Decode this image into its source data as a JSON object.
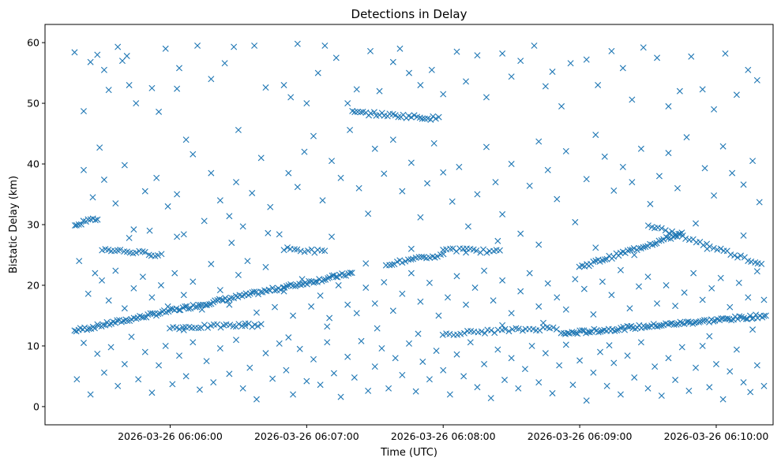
{
  "chart_data": {
    "type": "scatter",
    "title": "Detections in Delay",
    "xlabel": "Time (UTC)",
    "ylabel": "Bistatic Delay (km)",
    "x_unit": "seconds since 2026-03-26 06:05:00",
    "xlim": [
      5,
      325
    ],
    "ylim": [
      -3,
      63
    ],
    "x_ticks": [
      {
        "value": 60,
        "label": "2026-03-26 06:06:00"
      },
      {
        "value": 120,
        "label": "2026-03-26 06:07:00"
      },
      {
        "value": 180,
        "label": "2026-03-26 06:08:00"
      },
      {
        "value": 240,
        "label": "2026-03-26 06:09:00"
      },
      {
        "value": 300,
        "label": "2026-03-26 06:10:00"
      }
    ],
    "y_ticks": [
      {
        "value": 0,
        "label": "0"
      },
      {
        "value": 10,
        "label": "10"
      },
      {
        "value": 20,
        "label": "20"
      },
      {
        "value": 30,
        "label": "30"
      },
      {
        "value": 40,
        "label": "40"
      },
      {
        "value": 50,
        "label": "50"
      },
      {
        "value": 60,
        "label": "60"
      }
    ],
    "marker": "x",
    "color": "#1f77b4",
    "tracks": [
      {
        "name": "track-rising-1",
        "x0": 18,
        "y0": 12.5,
        "x1": 140,
        "y1": 22.0,
        "step": 0.9
      },
      {
        "name": "track-rising-2",
        "x0": 232,
        "y0": 12.0,
        "x1": 322,
        "y1": 15.0,
        "step": 0.9
      },
      {
        "name": "track-rising-3",
        "x0": 240,
        "y0": 23.0,
        "x1": 285,
        "y1": 28.5,
        "step": 1.0
      },
      {
        "name": "track-ridge-1",
        "x0": 140,
        "y0": 48.5,
        "x1": 178,
        "y1": 47.5,
        "step": 1.2
      },
      {
        "name": "track-ridge-2",
        "x0": 155,
        "y0": 23.5,
        "x1": 180,
        "y1": 25.0,
        "step": 1.2
      },
      {
        "name": "track-flat-1",
        "x0": 30,
        "y0": 26.0,
        "x1": 56,
        "y1": 25.0,
        "step": 1.4
      },
      {
        "name": "track-flat-2",
        "x0": 60,
        "y0": 13.0,
        "x1": 100,
        "y1": 13.5,
        "step": 1.4
      },
      {
        "name": "track-flat-3",
        "x0": 110,
        "y0": 26.0,
        "x1": 128,
        "y1": 25.5,
        "step": 1.5
      },
      {
        "name": "track-flat-4",
        "x0": 180,
        "y0": 26.0,
        "x1": 205,
        "y1": 25.5,
        "step": 1.5
      },
      {
        "name": "track-flat-5",
        "x0": 180,
        "y0": 12.0,
        "x1": 230,
        "y1": 13.0,
        "step": 1.5
      },
      {
        "name": "track-flat-6",
        "x0": 270,
        "y0": 30.0,
        "x1": 320,
        "y1": 23.5,
        "step": 1.5
      },
      {
        "name": "track-tail-1",
        "x0": 18,
        "y0": 30.0,
        "x1": 28,
        "y1": 31.0,
        "step": 1.0
      }
    ],
    "scatter_points": [
      [
        18,
        58.4
      ],
      [
        22,
        48.7
      ],
      [
        25,
        56.8
      ],
      [
        28,
        58.0
      ],
      [
        31,
        55.5
      ],
      [
        33,
        52.2
      ],
      [
        37,
        59.3
      ],
      [
        39,
        57.0
      ],
      [
        41,
        57.8
      ],
      [
        42,
        53.0
      ],
      [
        45,
        50.0
      ],
      [
        52,
        52.5
      ],
      [
        55,
        48.6
      ],
      [
        58,
        59.0
      ],
      [
        63,
        52.4
      ],
      [
        64,
        55.8
      ],
      [
        67,
        44.0
      ],
      [
        72,
        59.5
      ],
      [
        78,
        54.0
      ],
      [
        84,
        56.6
      ],
      [
        88,
        59.3
      ],
      [
        90,
        45.6
      ],
      [
        97,
        59.5
      ],
      [
        102,
        52.6
      ],
      [
        110,
        53.0
      ],
      [
        113,
        51.0
      ],
      [
        116,
        59.8
      ],
      [
        120,
        50.0
      ],
      [
        125,
        55.0
      ],
      [
        128,
        59.5
      ],
      [
        133,
        57.5
      ],
      [
        138,
        50.0
      ],
      [
        142,
        52.3
      ],
      [
        148,
        58.6
      ],
      [
        152,
        52.0
      ],
      [
        158,
        56.8
      ],
      [
        161,
        59.0
      ],
      [
        165,
        55.0
      ],
      [
        170,
        53.0
      ],
      [
        175,
        55.5
      ],
      [
        180,
        51.5
      ],
      [
        186,
        58.5
      ],
      [
        190,
        53.6
      ],
      [
        195,
        57.9
      ],
      [
        199,
        51.0
      ],
      [
        206,
        58.2
      ],
      [
        210,
        54.4
      ],
      [
        214,
        57.0
      ],
      [
        220,
        59.5
      ],
      [
        225,
        52.8
      ],
      [
        228,
        55.2
      ],
      [
        232,
        49.5
      ],
      [
        236,
        56.6
      ],
      [
        243,
        57.2
      ],
      [
        248,
        53.0
      ],
      [
        254,
        58.6
      ],
      [
        259,
        55.8
      ],
      [
        263,
        50.6
      ],
      [
        268,
        59.2
      ],
      [
        274,
        57.5
      ],
      [
        279,
        49.5
      ],
      [
        284,
        52.0
      ],
      [
        289,
        57.7
      ],
      [
        294,
        52.3
      ],
      [
        299,
        49.0
      ],
      [
        304,
        58.2
      ],
      [
        309,
        51.4
      ],
      [
        314,
        55.5
      ],
      [
        318,
        53.8
      ],
      [
        22,
        39.0
      ],
      [
        26,
        34.5
      ],
      [
        29,
        42.7
      ],
      [
        31,
        37.4
      ],
      [
        36,
        33.5
      ],
      [
        40,
        39.8
      ],
      [
        44,
        29.2
      ],
      [
        49,
        35.5
      ],
      [
        51,
        29.0
      ],
      [
        54,
        37.7
      ],
      [
        59,
        33.0
      ],
      [
        63,
        35.0
      ],
      [
        66,
        28.4
      ],
      [
        70,
        41.6
      ],
      [
        75,
        30.6
      ],
      [
        78,
        38.5
      ],
      [
        82,
        34.0
      ],
      [
        86,
        31.4
      ],
      [
        89,
        37.0
      ],
      [
        92,
        29.7
      ],
      [
        96,
        35.2
      ],
      [
        100,
        41.0
      ],
      [
        104,
        32.9
      ],
      [
        108,
        28.4
      ],
      [
        112,
        38.5
      ],
      [
        116,
        36.2
      ],
      [
        119,
        42.0
      ],
      [
        123,
        44.6
      ],
      [
        127,
        34.0
      ],
      [
        131,
        40.5
      ],
      [
        135,
        37.7
      ],
      [
        139,
        45.6
      ],
      [
        143,
        36.0
      ],
      [
        147,
        31.8
      ],
      [
        150,
        42.5
      ],
      [
        154,
        38.4
      ],
      [
        158,
        44.0
      ],
      [
        162,
        35.5
      ],
      [
        166,
        40.2
      ],
      [
        170,
        31.2
      ],
      [
        173,
        36.8
      ],
      [
        176,
        43.4
      ],
      [
        180,
        38.6
      ],
      [
        184,
        33.8
      ],
      [
        187,
        39.5
      ],
      [
        191,
        29.7
      ],
      [
        195,
        35.0
      ],
      [
        199,
        42.8
      ],
      [
        203,
        37.0
      ],
      [
        206,
        31.7
      ],
      [
        210,
        40.0
      ],
      [
        214,
        28.5
      ],
      [
        218,
        36.4
      ],
      [
        222,
        43.7
      ],
      [
        226,
        39.0
      ],
      [
        230,
        34.2
      ],
      [
        234,
        42.1
      ],
      [
        238,
        30.4
      ],
      [
        243,
        37.5
      ],
      [
        247,
        44.8
      ],
      [
        251,
        41.2
      ],
      [
        255,
        35.6
      ],
      [
        259,
        39.5
      ],
      [
        263,
        37.0
      ],
      [
        267,
        42.5
      ],
      [
        271,
        33.4
      ],
      [
        275,
        38.0
      ],
      [
        279,
        41.8
      ],
      [
        283,
        36.0
      ],
      [
        287,
        44.4
      ],
      [
        291,
        30.2
      ],
      [
        295,
        39.3
      ],
      [
        299,
        34.8
      ],
      [
        303,
        42.9
      ],
      [
        307,
        38.5
      ],
      [
        312,
        36.6
      ],
      [
        316,
        40.5
      ],
      [
        319,
        33.7
      ],
      [
        20,
        24.0
      ],
      [
        24,
        18.6
      ],
      [
        27,
        22.0
      ],
      [
        30,
        20.8
      ],
      [
        33,
        17.5
      ],
      [
        36,
        22.4
      ],
      [
        40,
        16.2
      ],
      [
        44,
        19.5
      ],
      [
        48,
        21.4
      ],
      [
        52,
        18.0
      ],
      [
        56,
        20.0
      ],
      [
        59,
        16.5
      ],
      [
        62,
        22.0
      ],
      [
        66,
        18.4
      ],
      [
        70,
        20.6
      ],
      [
        74,
        16.0
      ],
      [
        78,
        23.5
      ],
      [
        82,
        19.2
      ],
      [
        86,
        16.8
      ],
      [
        90,
        21.7
      ],
      [
        94,
        24.0
      ],
      [
        98,
        15.5
      ],
      [
        102,
        23.0
      ],
      [
        106,
        16.4
      ],
      [
        110,
        19.0
      ],
      [
        114,
        15.0
      ],
      [
        118,
        21.0
      ],
      [
        122,
        16.5
      ],
      [
        126,
        18.3
      ],
      [
        130,
        14.6
      ],
      [
        134,
        20.0
      ],
      [
        138,
        16.8
      ],
      [
        142,
        15.4
      ],
      [
        146,
        19.6
      ],
      [
        150,
        17.0
      ],
      [
        154,
        20.5
      ],
      [
        158,
        15.8
      ],
      [
        162,
        18.6
      ],
      [
        166,
        22.0
      ],
      [
        170,
        17.3
      ],
      [
        174,
        20.4
      ],
      [
        178,
        15.0
      ],
      [
        182,
        18.0
      ],
      [
        186,
        21.5
      ],
      [
        190,
        16.8
      ],
      [
        194,
        19.6
      ],
      [
        198,
        22.4
      ],
      [
        202,
        17.5
      ],
      [
        206,
        20.8
      ],
      [
        210,
        15.4
      ],
      [
        214,
        19.0
      ],
      [
        218,
        22.0
      ],
      [
        222,
        16.5
      ],
      [
        226,
        20.3
      ],
      [
        230,
        18.0
      ],
      [
        234,
        16.0
      ],
      [
        238,
        21.0
      ],
      [
        242,
        19.4
      ],
      [
        246,
        15.2
      ],
      [
        250,
        20.6
      ],
      [
        254,
        18.4
      ],
      [
        258,
        22.5
      ],
      [
        262,
        16.2
      ],
      [
        266,
        19.8
      ],
      [
        270,
        21.4
      ],
      [
        274,
        17.0
      ],
      [
        278,
        20.0
      ],
      [
        282,
        16.6
      ],
      [
        286,
        18.8
      ],
      [
        290,
        22.0
      ],
      [
        294,
        17.6
      ],
      [
        298,
        19.5
      ],
      [
        302,
        21.2
      ],
      [
        306,
        16.4
      ],
      [
        310,
        20.4
      ],
      [
        314,
        18.0
      ],
      [
        318,
        22.3
      ],
      [
        321,
        17.6
      ],
      [
        19,
        4.5
      ],
      [
        22,
        10.5
      ],
      [
        25,
        2.0
      ],
      [
        28,
        8.7
      ],
      [
        31,
        5.6
      ],
      [
        34,
        9.8
      ],
      [
        37,
        3.4
      ],
      [
        40,
        7.0
      ],
      [
        43,
        11.5
      ],
      [
        46,
        4.5
      ],
      [
        49,
        9.0
      ],
      [
        52,
        2.3
      ],
      [
        55,
        6.8
      ],
      [
        58,
        10.0
      ],
      [
        61,
        3.7
      ],
      [
        64,
        8.4
      ],
      [
        67,
        5.0
      ],
      [
        70,
        10.6
      ],
      [
        73,
        2.8
      ],
      [
        76,
        7.5
      ],
      [
        79,
        4.0
      ],
      [
        82,
        9.6
      ],
      [
        86,
        5.4
      ],
      [
        89,
        11.0
      ],
      [
        92,
        3.0
      ],
      [
        95,
        6.4
      ],
      [
        98,
        1.2
      ],
      [
        102,
        8.8
      ],
      [
        105,
        4.6
      ],
      [
        108,
        10.4
      ],
      [
        111,
        6.0
      ],
      [
        114,
        2.0
      ],
      [
        117,
        9.5
      ],
      [
        120,
        4.2
      ],
      [
        123,
        7.8
      ],
      [
        126,
        3.6
      ],
      [
        129,
        10.6
      ],
      [
        132,
        5.5
      ],
      [
        135,
        1.6
      ],
      [
        138,
        8.2
      ],
      [
        141,
        4.8
      ],
      [
        144,
        10.8
      ],
      [
        147,
        2.6
      ],
      [
        150,
        6.6
      ],
      [
        153,
        9.6
      ],
      [
        156,
        3.0
      ],
      [
        159,
        8.0
      ],
      [
        162,
        5.2
      ],
      [
        165,
        10.4
      ],
      [
        168,
        2.5
      ],
      [
        171,
        7.4
      ],
      [
        174,
        4.5
      ],
      [
        177,
        9.2
      ],
      [
        180,
        6.0
      ],
      [
        183,
        2.0
      ],
      [
        186,
        8.6
      ],
      [
        189,
        5.0
      ],
      [
        192,
        10.6
      ],
      [
        195,
        3.2
      ],
      [
        198,
        7.0
      ],
      [
        201,
        1.4
      ],
      [
        204,
        9.4
      ],
      [
        207,
        4.4
      ],
      [
        210,
        8.0
      ],
      [
        213,
        3.0
      ],
      [
        216,
        6.2
      ],
      [
        219,
        10.0
      ],
      [
        222,
        4.0
      ],
      [
        225,
        8.8
      ],
      [
        228,
        2.2
      ],
      [
        231,
        6.8
      ],
      [
        234,
        10.2
      ],
      [
        237,
        3.6
      ],
      [
        240,
        7.6
      ],
      [
        243,
        1.0
      ],
      [
        246,
        5.6
      ],
      [
        249,
        9.0
      ],
      [
        252,
        3.4
      ],
      [
        255,
        7.2
      ],
      [
        258,
        2.0
      ],
      [
        261,
        8.4
      ],
      [
        264,
        4.8
      ],
      [
        267,
        10.6
      ],
      [
        270,
        3.0
      ],
      [
        273,
        6.6
      ],
      [
        276,
        1.8
      ],
      [
        279,
        8.0
      ],
      [
        282,
        4.4
      ],
      [
        285,
        9.8
      ],
      [
        288,
        2.6
      ],
      [
        291,
        6.4
      ],
      [
        294,
        10.0
      ],
      [
        297,
        3.2
      ],
      [
        300,
        7.0
      ],
      [
        303,
        1.2
      ],
      [
        306,
        5.8
      ],
      [
        309,
        9.4
      ],
      [
        312,
        4.0
      ],
      [
        315,
        2.4
      ],
      [
        318,
        6.8
      ],
      [
        321,
        3.4
      ],
      [
        42,
        27.8
      ],
      [
        63,
        28.0
      ],
      [
        87,
        27.0
      ],
      [
        103,
        28.6
      ],
      [
        131,
        28.0
      ],
      [
        146,
        23.6
      ],
      [
        166,
        26.0
      ],
      [
        190,
        25.4
      ],
      [
        204,
        27.3
      ],
      [
        222,
        26.7
      ],
      [
        247,
        26.2
      ],
      [
        264,
        25.0
      ],
      [
        296,
        26.0
      ],
      [
        312,
        28.2
      ],
      [
        66,
        12.6
      ],
      [
        93,
        13.7
      ],
      [
        112,
        11.4
      ],
      [
        129,
        13.2
      ],
      [
        151,
        12.9
      ],
      [
        169,
        12.0
      ],
      [
        206,
        13.4
      ],
      [
        224,
        13.8
      ],
      [
        253,
        10.1
      ],
      [
        297,
        11.6
      ],
      [
        316,
        12.7
      ]
    ]
  }
}
